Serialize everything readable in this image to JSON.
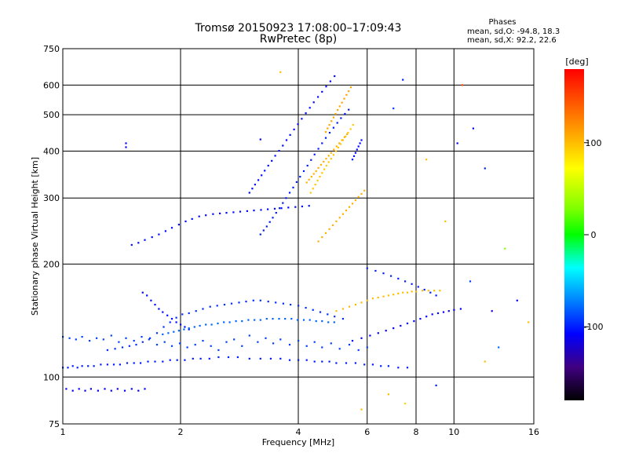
{
  "chart_data": {
    "type": "scatter",
    "title": "Tromsø 20150923 17:08:00–17:09:43",
    "subtitle": "RwPretec (8p)",
    "xlabel": "Frequency [MHz]",
    "ylabel": "Stationary phase Virtual Height [km]",
    "x_scale": "log",
    "y_scale": "log",
    "xlim": [
      1,
      16
    ],
    "ylim": [
      75,
      750
    ],
    "x_ticks": [
      1,
      2,
      4,
      6,
      8,
      10,
      16
    ],
    "x_tick_labels": [
      "1",
      "2",
      "4",
      "6",
      "8",
      "10",
      "16"
    ],
    "y_ticks": [
      75,
      100,
      200,
      300,
      400,
      500,
      600,
      750
    ],
    "y_tick_labels": [
      "75",
      "100",
      "200",
      "300",
      "400",
      "500",
      "600",
      "750"
    ],
    "grid": true,
    "stats_header": "Phases",
    "stats_lines": [
      "mean, sd,O:  -94.8, 18.3",
      "mean, sd,X:  92.2, 22.6"
    ],
    "colorbar": {
      "title": "[deg]",
      "range": [
        -180,
        180
      ],
      "tick_values": [
        100,
        0,
        -100
      ],
      "tick_labels": [
        "100",
        "0",
        "-100"
      ]
    },
    "traces": [
      {
        "x": [
          1.0,
          1.03,
          1.06,
          1.09,
          1.12,
          1.16,
          1.2,
          1.25,
          1.3,
          1.35,
          1.4,
          1.46,
          1.52,
          1.58,
          1.65,
          1.72,
          1.8,
          1.88,
          1.96,
          2.05,
          2.15,
          2.25,
          2.37,
          2.5,
          2.65,
          2.8,
          3.0,
          3.2,
          3.4,
          3.6,
          3.8,
          4.0,
          4.2,
          4.4,
          4.6,
          4.8,
          5.0,
          5.3,
          5.6,
          5.9,
          6.2,
          6.5,
          6.8,
          7.2,
          7.6
        ],
        "y": [
          106,
          106,
          107,
          106,
          107,
          107,
          107,
          108,
          108,
          108,
          108,
          109,
          109,
          109,
          110,
          110,
          110,
          111,
          111,
          111,
          112,
          112,
          112,
          113,
          113,
          113,
          112,
          112,
          112,
          112,
          111,
          111,
          111,
          110,
          110,
          110,
          109,
          109,
          109,
          108,
          108,
          107,
          107,
          106,
          106
        ],
        "phase": -100
      },
      {
        "x": [
          1.0,
          1.04,
          1.08,
          1.12,
          1.17,
          1.22,
          1.27,
          1.33,
          1.39,
          1.45,
          1.52,
          1.59,
          1.66,
          1.74,
          1.82,
          1.9,
          1.99,
          2.08,
          2.18,
          2.28,
          2.39,
          2.5,
          2.62,
          2.74,
          2.87,
          3.0,
          3.15,
          3.3,
          3.45,
          3.6,
          3.8,
          4.0,
          4.2,
          4.4,
          4.6,
          4.85,
          5.1,
          5.4,
          5.7,
          6.0
        ],
        "y": [
          128,
          127,
          126,
          128,
          125,
          127,
          126,
          129,
          124,
          127,
          125,
          128,
          126,
          122,
          124,
          121,
          123,
          120,
          122,
          125,
          121,
          118,
          124,
          126,
          121,
          129,
          124,
          127,
          123,
          126,
          122,
          125,
          121,
          124,
          120,
          123,
          119,
          122,
          118,
          120
        ],
        "phase": -90
      },
      {
        "x": [
          1.3,
          1.36,
          1.42,
          1.48,
          1.54,
          1.6,
          1.67,
          1.74,
          1.81,
          1.88,
          1.95,
          2.02,
          2.1,
          2.19,
          2.28,
          2.38,
          2.48,
          2.59,
          2.7,
          2.82,
          2.94,
          3.07,
          3.2,
          3.35,
          3.5,
          3.66,
          3.82,
          4.0,
          4.18,
          4.36,
          4.55,
          4.75,
          4.95,
          5.2
        ],
        "y": [
          118,
          119,
          120,
          121,
          122,
          124,
          127,
          131,
          136,
          140,
          144,
          147,
          148,
          150,
          152,
          154,
          155,
          156,
          157,
          158,
          159,
          160,
          160,
          159,
          158,
          157,
          156,
          155,
          153,
          151,
          149,
          147,
          145,
          143
        ],
        "phase": -95
      },
      {
        "x": [
          1.6,
          1.64,
          1.68,
          1.72,
          1.76,
          1.8,
          1.85,
          1.9,
          1.95,
          2.0,
          2.05,
          2.1
        ],
        "y": [
          168,
          165,
          160,
          156,
          152,
          149,
          146,
          143,
          140,
          138,
          136,
          134
        ],
        "phase": -105
      },
      {
        "x": [
          1.8,
          1.86,
          1.92,
          1.98,
          2.04,
          2.1,
          2.17,
          2.24,
          2.32,
          2.4,
          2.49,
          2.58,
          2.67,
          2.77,
          2.87,
          2.98,
          3.09,
          3.2,
          3.32,
          3.44,
          3.57,
          3.7,
          3.84,
          3.98,
          4.13,
          4.28,
          4.44,
          4.6,
          4.77,
          4.94
        ],
        "y": [
          130,
          131,
          132,
          133,
          134,
          135,
          136,
          137,
          138,
          138,
          139,
          140,
          140,
          141,
          141,
          142,
          142,
          142,
          143,
          143,
          143,
          143,
          143,
          142,
          142,
          142,
          141,
          141,
          140,
          140
        ],
        "phase": -80
      },
      {
        "x": [
          1.5,
          1.56,
          1.62,
          1.69,
          1.76,
          1.83,
          1.9,
          1.98,
          2.06,
          2.14,
          2.23,
          2.32,
          2.42,
          2.52,
          2.62,
          2.73,
          2.84,
          2.96,
          3.08,
          3.21,
          3.34,
          3.48,
          3.62,
          3.77,
          3.93,
          4.09,
          4.26
        ],
        "y": [
          225,
          228,
          232,
          236,
          240,
          245,
          250,
          255,
          260,
          264,
          268,
          270,
          272,
          273,
          274,
          275,
          276,
          277,
          278,
          279,
          280,
          281,
          282,
          283,
          284,
          285,
          286
        ],
        "phase": -105
      },
      {
        "x": [
          1.02,
          1.06,
          1.1,
          1.14,
          1.18,
          1.23,
          1.28,
          1.33,
          1.38,
          1.44,
          1.5,
          1.56,
          1.62
        ],
        "y": [
          93,
          92,
          93,
          92,
          93,
          92,
          93,
          92,
          93,
          92,
          93,
          92,
          93
        ],
        "phase": -110
      },
      {
        "x": [
          3.0,
          3.05,
          3.1,
          3.16,
          3.22,
          3.28,
          3.35,
          3.42,
          3.49,
          3.57,
          3.65,
          3.73,
          3.81,
          3.9,
          3.99,
          4.08,
          4.18,
          4.28,
          4.38,
          4.49,
          4.6,
          4.71,
          4.83,
          4.95
        ],
        "y": [
          310,
          318,
          326,
          335,
          345,
          355,
          366,
          377,
          389,
          401,
          414,
          428,
          442,
          457,
          472,
          488,
          505,
          522,
          540,
          558,
          576,
          595,
          614,
          634
        ],
        "phase": -105
      },
      {
        "x": [
          3.2,
          3.26,
          3.32,
          3.38,
          3.44,
          3.51,
          3.58,
          3.65,
          3.72,
          3.8,
          3.88,
          3.96,
          4.04,
          4.13,
          4.22,
          4.31,
          4.4,
          4.5,
          4.6,
          4.7,
          4.81,
          4.92,
          5.03,
          5.14,
          5.26,
          5.38
        ],
        "y": [
          240,
          246,
          252,
          259,
          266,
          274,
          282,
          291,
          300,
          310,
          320,
          331,
          342,
          354,
          366,
          379,
          392,
          406,
          420,
          434,
          448,
          462,
          476,
          490,
          503,
          516
        ],
        "phase": -100
      },
      {
        "x": [
          4.3,
          4.36,
          4.42,
          4.48,
          4.54,
          4.6,
          4.66,
          4.72,
          4.78,
          4.85,
          4.92,
          4.99,
          5.06,
          5.13,
          5.2,
          5.28,
          5.36,
          5.44,
          5.52
        ],
        "y": [
          310,
          318,
          326,
          334,
          342,
          350,
          358,
          366,
          374,
          382,
          391,
          400,
          409,
          418,
          428,
          438,
          448,
          458,
          470
        ],
        "phase": 95
      },
      {
        "x": [
          4.2,
          4.26,
          4.32,
          4.38,
          4.44,
          4.5,
          4.57,
          4.64,
          4.71,
          4.78,
          4.85,
          4.93,
          5.01,
          5.09,
          5.17,
          5.25,
          5.33
        ],
        "y": [
          330,
          336,
          342,
          348,
          354,
          361,
          368,
          375,
          382,
          389,
          396,
          404,
          412,
          420,
          428,
          436,
          444
        ],
        "phase": 105
      },
      {
        "x": [
          4.7,
          4.75,
          4.8,
          4.86,
          4.92,
          4.98,
          5.04,
          5.1,
          5.17,
          5.24,
          5.31,
          5.38,
          5.45
        ],
        "y": [
          450,
          460,
          470,
          481,
          492,
          503,
          515,
          527,
          539,
          552,
          565,
          578,
          592
        ],
        "phase": 110
      },
      {
        "x": [
          5.5,
          5.55,
          5.6,
          5.65,
          5.7,
          5.75,
          5.8
        ],
        "y": [
          380,
          388,
          396,
          404,
          412,
          420,
          428
        ],
        "phase": -105
      },
      {
        "x": [
          4.5,
          4.6,
          4.7,
          4.8,
          4.9,
          5.0,
          5.1,
          5.2,
          5.3,
          5.4,
          5.5,
          5.6,
          5.7,
          5.8,
          5.9
        ],
        "y": [
          230,
          236,
          242,
          248,
          254,
          260,
          266,
          272,
          278,
          284,
          290,
          296,
          302,
          308,
          314
        ],
        "phase": 105
      },
      {
        "x": [
          5.0,
          5.2,
          5.4,
          5.6,
          5.8,
          6.0,
          6.2,
          6.4,
          6.6,
          6.8,
          7.0,
          7.2,
          7.4,
          7.6,
          7.8,
          8.0,
          8.3,
          8.6,
          8.9,
          9.2
        ],
        "y": [
          150,
          152,
          154,
          156,
          158,
          160,
          162,
          163,
          164,
          165,
          166,
          167,
          168,
          168,
          169,
          169,
          170,
          170,
          170,
          170
        ],
        "phase": 100
      },
      {
        "x": [
          5.5,
          5.8,
          6.1,
          6.4,
          6.7,
          7.0,
          7.3,
          7.6,
          7.9,
          8.2,
          8.5,
          8.8,
          9.1,
          9.4,
          9.7,
          10.0,
          10.4
        ],
        "y": [
          125,
          127,
          129,
          131,
          133,
          135,
          137,
          139,
          141,
          143,
          145,
          147,
          148,
          149,
          150,
          151,
          152
        ],
        "phase": -110
      },
      {
        "x": [
          6.0,
          6.3,
          6.6,
          6.9,
          7.2,
          7.5,
          7.8,
          8.1,
          8.4,
          8.7,
          9.0
        ],
        "y": [
          195,
          192,
          189,
          186,
          183,
          180,
          177,
          174,
          171,
          168,
          165
        ],
        "phase": -100
      }
    ],
    "scattered_points": [
      {
        "x": 1.45,
        "y": 420,
        "phase": -105
      },
      {
        "x": 1.45,
        "y": 410,
        "phase": -105
      },
      {
        "x": 7.4,
        "y": 620,
        "phase": -100
      },
      {
        "x": 10.5,
        "y": 600,
        "phase": 150
      },
      {
        "x": 11.2,
        "y": 460,
        "phase": -110
      },
      {
        "x": 10.2,
        "y": 420,
        "phase": -110
      },
      {
        "x": 12.0,
        "y": 360,
        "phase": -100
      },
      {
        "x": 13.5,
        "y": 220,
        "phase": 30
      },
      {
        "x": 14.5,
        "y": 160,
        "phase": -110
      },
      {
        "x": 12.5,
        "y": 150,
        "phase": -120
      },
      {
        "x": 11.0,
        "y": 180,
        "phase": -90
      },
      {
        "x": 9.5,
        "y": 260,
        "phase": 100
      },
      {
        "x": 8.5,
        "y": 380,
        "phase": 100
      },
      {
        "x": 7.0,
        "y": 520,
        "phase": -90
      },
      {
        "x": 3.6,
        "y": 650,
        "phase": 100
      },
      {
        "x": 3.2,
        "y": 430,
        "phase": -110
      },
      {
        "x": 6.8,
        "y": 90,
        "phase": 100
      },
      {
        "x": 7.5,
        "y": 85,
        "phase": 90
      },
      {
        "x": 9.0,
        "y": 95,
        "phase": -100
      },
      {
        "x": 5.8,
        "y": 82,
        "phase": 100
      },
      {
        "x": 13.0,
        "y": 120,
        "phase": -80
      },
      {
        "x": 12.0,
        "y": 110,
        "phase": 100
      },
      {
        "x": 15.5,
        "y": 140,
        "phase": 100
      }
    ]
  }
}
